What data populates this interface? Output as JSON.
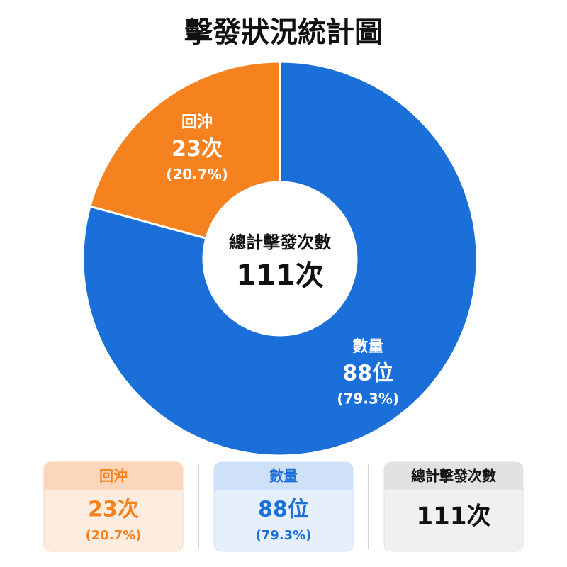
{
  "chart_data": {
    "type": "pie",
    "title": "擊發狀況統計圖",
    "categories": [
      "回沖",
      "數量"
    ],
    "values": [
      23,
      88
    ],
    "value_labels": [
      "23次",
      "88位"
    ],
    "percentages": [
      20.7,
      79.3
    ],
    "percentage_labels": [
      "(20.7%)",
      "(79.3%)"
    ],
    "colors": [
      "#f5821f",
      "#1b6fd8"
    ],
    "total_label": "總計擊發次數",
    "total": 111,
    "total_value_label": "111次"
  }
}
